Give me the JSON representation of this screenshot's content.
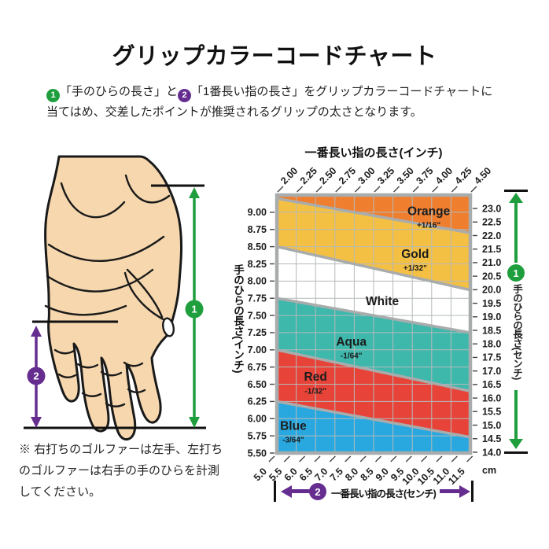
{
  "title": "グリップカラーコードチャート",
  "intro": {
    "badge1": "1",
    "seg1": "「手のひらの長さ」と",
    "badge2": "2",
    "seg2": "「1番長い指の長さ」をグリップカラーコードチャートに当てはめ、交差したポイントが推奨されるグリップの太さとなります。"
  },
  "note": "※ 右打ちのゴルファーは左手、左打ちのゴルファーは右手の手のひらを計測してください。",
  "hand": {
    "marker1": "1",
    "marker2": "2"
  },
  "right_assembly": {
    "badge": "1",
    "label": "手のひらの長さ(センチ)"
  },
  "bottom_assembly": {
    "badge": "2",
    "label": "一番長い指の長さ(センチ)"
  },
  "colors": {
    "green": "#1E9E3C",
    "purple": "#662D91",
    "grid": "#B5BABA",
    "frame": "#A9ACAC",
    "skin": "#F6D7AE",
    "outline": "#1A1A1A",
    "tick": "#444444"
  },
  "chart_data": {
    "type": "area",
    "description": "Grip color code chart: diagonal color bands mapping longest-finger length (x) and palm length (y) to recommended grip size",
    "axis_top": {
      "title": "一番長い指の長さ(インチ)",
      "min": 2.0,
      "max": 4.5,
      "ticks": [
        "2.00",
        "2.25",
        "2.50",
        "2.75",
        "3.00",
        "3.25",
        "3.50",
        "3.75",
        "4.00",
        "4.25",
        "4.50"
      ]
    },
    "axis_left": {
      "title": "手のひらの長さ(インチ)",
      "min": 5.5,
      "max": 9.25,
      "ticks": [
        "9.00",
        "8.75",
        "8.50",
        "8.25",
        "8.00",
        "7.75",
        "7.50",
        "7.25",
        "7.00",
        "6.75",
        "6.50",
        "6.25",
        "6.00",
        "5.75",
        "5.50"
      ]
    },
    "axis_right": {
      "title": "手のひらの長さ(センチ)",
      "min_cm": 13.97,
      "max_cm": 23.495,
      "ticks": [
        "23.0",
        "22.5",
        "22.0",
        "21.5",
        "21.0",
        "20.5",
        "20.0",
        "19.5",
        "19.0",
        "18.5",
        "18.0",
        "17.5",
        "17.0",
        "16.5",
        "16.0",
        "15.5",
        "15.0",
        "14.5",
        "14.0"
      ],
      "unit": "cm"
    },
    "axis_bottom": {
      "title": "一番長い指の長さ(センチ)",
      "min_cm": 5.08,
      "max_cm": 11.43,
      "ticks": [
        "5.0",
        "5.5",
        "6.0",
        "6.5",
        "7.0",
        "7.5",
        "8.0",
        "8.5",
        "9.0",
        "9.5",
        "10.0",
        "10.5",
        "11.0",
        "11.5"
      ]
    },
    "grid_step_in": 0.25,
    "bands": [
      {
        "name": "Orange",
        "size_label": "+1/16\"",
        "color": "#EF7E2E",
        "label_fx": 0.785,
        "label_fy": 0.062
      },
      {
        "name": "Gold",
        "size_label": "+1/32\"",
        "color": "#F4C044",
        "label_fx": 0.715,
        "label_fy": 0.228
      },
      {
        "name": "White",
        "size_label": "",
        "color": "#FFFFFF",
        "label_fx": 0.545,
        "label_fy": 0.412
      },
      {
        "name": "Aqua",
        "size_label": "-1/64\"",
        "color": "#3FB8AC",
        "label_fx": 0.385,
        "label_fy": 0.568
      },
      {
        "name": "Red",
        "size_label": "-1/32\"",
        "color": "#E84338",
        "label_fx": 0.2,
        "label_fy": 0.705
      },
      {
        "name": "Blue",
        "size_label": "-3/64\"",
        "color": "#29A8E0",
        "label_fx": 0.085,
        "label_fy": 0.895
      }
    ],
    "band_boundaries_palm_in": [
      {
        "at_finger_2_0": 9.2,
        "at_finger_4_5": 8.7
      },
      {
        "at_finger_2_0": 8.5,
        "at_finger_4_5": 7.87
      },
      {
        "at_finger_2_0": 7.75,
        "at_finger_4_5": 7.25
      },
      {
        "at_finger_2_0": 7.0,
        "at_finger_4_5": 6.4
      },
      {
        "at_finger_2_0": 6.25,
        "at_finger_4_5": 5.73
      }
    ]
  }
}
